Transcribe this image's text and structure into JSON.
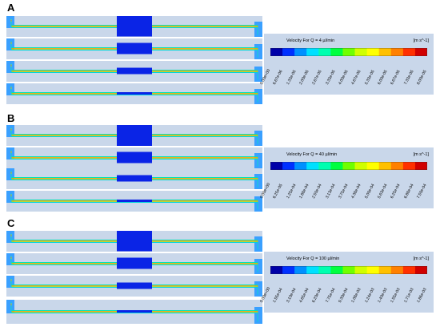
{
  "panels": [
    {
      "label": "A",
      "legend_title": "Velocity For Q = 4 µl/min",
      "legend_unit": "[m s^-1]",
      "ticks": [
        "0.00e+00",
        "6.67e-06",
        "1.33e-05",
        "2.00e-05",
        "2.67e-05",
        "3.33e-05",
        "4.00e-05",
        "4.67e-05",
        "5.33e-05",
        "6.00e-05",
        "6.67e-05",
        "7.33e-05",
        "8.00e-05"
      ]
    },
    {
      "label": "B",
      "legend_title": "Velocity For Q = 40 µl/min",
      "legend_unit": "[m s^-1]",
      "ticks": [
        "0.00e+00",
        "6.25e-05",
        "1.25e-04",
        "1.88e-04",
        "2.50e-04",
        "3.13e-04",
        "3.75e-04",
        "4.38e-04",
        "5.00e-04",
        "5.63e-04",
        "6.25e-04",
        "6.88e-04",
        "7.50e-04"
      ]
    },
    {
      "label": "C",
      "legend_title": "Velocity For Q = 100 µl/min",
      "legend_unit": "[m s^-1]",
      "ticks": [
        "0.00e+00",
        "1.55e-04",
        "3.10e-04",
        "4.65e-04",
        "6.20e-04",
        "7.75e-04",
        "9.30e-04",
        "1.08e-03",
        "1.24e-03",
        "1.40e-03",
        "1.55e-03",
        "1.71e-03",
        "1.86e-03"
      ]
    }
  ],
  "colormap": [
    "#0000a8",
    "#0030ff",
    "#0090ff",
    "#00e0ff",
    "#00ffb0",
    "#00ff40",
    "#70ff00",
    "#d0ff00",
    "#ffff00",
    "#ffc000",
    "#ff8000",
    "#ff3000",
    "#d00000"
  ]
}
